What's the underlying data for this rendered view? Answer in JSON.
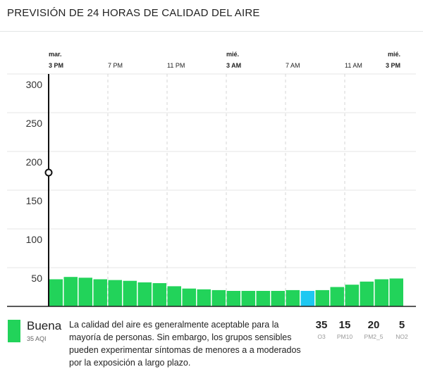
{
  "title": "PREVISIÓN DE 24 HORAS DE CALIDAD DEL AIRE",
  "chart_data": {
    "type": "bar",
    "x": [
      0,
      1,
      2,
      3,
      4,
      5,
      6,
      7,
      8,
      9,
      10,
      11,
      12,
      13,
      14,
      15,
      16,
      17,
      18,
      19,
      20,
      21,
      22,
      23
    ],
    "values": [
      35,
      38,
      37,
      35,
      34,
      33,
      31,
      30,
      26,
      23,
      22,
      21,
      20,
      20,
      20,
      20,
      21,
      20,
      21,
      25,
      28,
      32,
      35,
      36
    ],
    "color": "#22d35a",
    "highlight_index": 17,
    "highlight_color": "#1ec8f2",
    "xlim": [
      0,
      24
    ],
    "xticks": [
      {
        "value": 0,
        "label": "3 PM"
      },
      {
        "value": 4,
        "label": "7 PM"
      },
      {
        "value": 8,
        "label": "11 PM"
      },
      {
        "value": 12,
        "label": "3 AM"
      },
      {
        "value": 16,
        "label": "7 AM"
      },
      {
        "value": 20,
        "label": "11 AM"
      },
      {
        "value": 24,
        "label": "3 PM"
      }
    ],
    "day_labels": [
      {
        "value": 0,
        "label": "mar."
      },
      {
        "value": 12,
        "label": "mié."
      },
      {
        "value": 24,
        "label": "mié."
      }
    ],
    "ylim": [
      0,
      300
    ],
    "yticks": [
      50,
      100,
      150,
      200,
      250,
      300
    ],
    "grid": true
  },
  "summary": {
    "category": "Buena",
    "aqi": "35 AQI",
    "description": "La calidad del aire es generalmente aceptable para la mayoría de personas. Sin embargo, los grupos sensibles pueden experimentar síntomas de menores a a moderados por la exposición a largo plazo.",
    "pollutants": [
      {
        "value": "35",
        "name": "O3"
      },
      {
        "value": "15",
        "name": "PM10"
      },
      {
        "value": "20",
        "name": "PM2_5"
      },
      {
        "value": "5",
        "name": "NO2"
      }
    ]
  }
}
